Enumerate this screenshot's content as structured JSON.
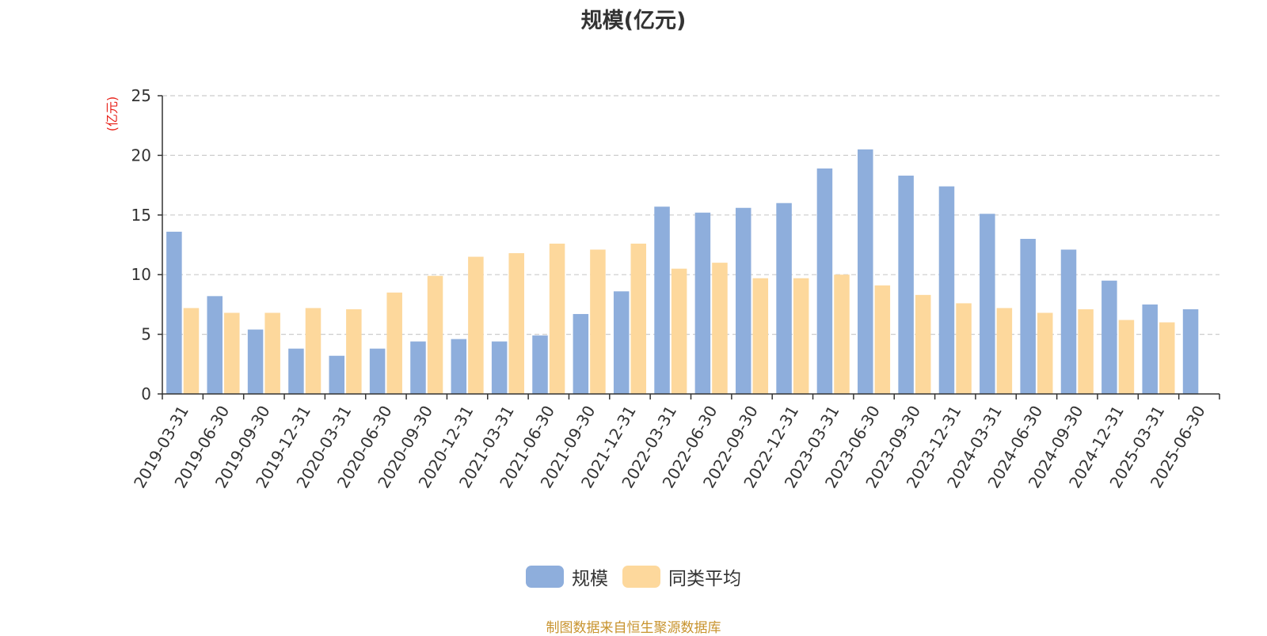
{
  "chart_data": {
    "type": "bar",
    "title": "规模(亿元)",
    "ylabel": "(亿元)",
    "xlabel": "",
    "ylim": [
      0,
      25
    ],
    "yticks": [
      0,
      5,
      10,
      15,
      20,
      25
    ],
    "grid": true,
    "legend_position": "bottom",
    "categories": [
      "2019-03-31",
      "2019-06-30",
      "2019-09-30",
      "2019-12-31",
      "2020-03-31",
      "2020-06-30",
      "2020-09-30",
      "2020-12-31",
      "2021-03-31",
      "2021-06-30",
      "2021-09-30",
      "2021-12-31",
      "2022-03-31",
      "2022-06-30",
      "2022-09-30",
      "2022-12-31",
      "2023-03-31",
      "2023-06-30",
      "2023-09-30",
      "2023-12-31",
      "2024-03-31",
      "2024-06-30",
      "2024-09-30",
      "2024-12-31",
      "2025-03-31",
      "2025-06-30"
    ],
    "series": [
      {
        "name": "规模",
        "color": "#8eaedc",
        "values": [
          13.6,
          8.2,
          5.4,
          3.8,
          3.2,
          3.8,
          4.4,
          4.6,
          4.4,
          4.9,
          6.7,
          8.6,
          15.7,
          15.2,
          15.6,
          16.0,
          18.9,
          20.5,
          18.3,
          17.4,
          15.1,
          13.0,
          12.1,
          9.5,
          7.5,
          7.1
        ]
      },
      {
        "name": "同类平均",
        "color": "#fdd89c",
        "values": [
          7.2,
          6.8,
          6.8,
          7.2,
          7.1,
          8.5,
          9.9,
          11.5,
          11.8,
          12.6,
          12.1,
          12.6,
          10.5,
          11.0,
          9.7,
          9.7,
          10.0,
          9.1,
          8.3,
          7.6,
          7.2,
          6.8,
          7.1,
          6.2,
          6.0,
          null
        ]
      }
    ]
  },
  "footer": {
    "source": "制图数据来自恒生聚源数据库"
  }
}
